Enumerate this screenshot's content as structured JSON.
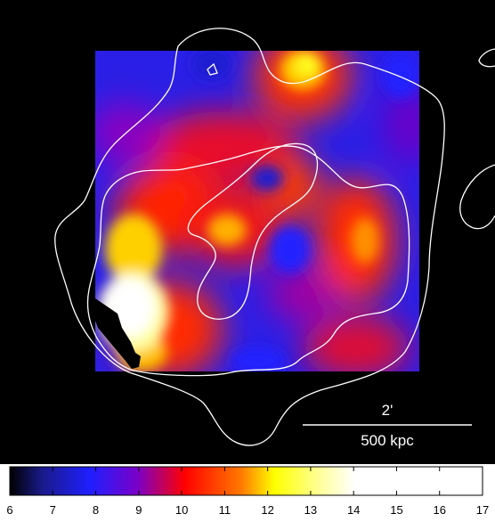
{
  "scale_bar": {
    "angular_label": "2'",
    "physical_label": "500 kpc"
  },
  "colorbar": {
    "min": 6,
    "max": 17,
    "tick_labels": [
      "6",
      "7",
      "8",
      "9",
      "10",
      "11",
      "12",
      "13",
      "14",
      "15",
      "16",
      "17"
    ],
    "colors": [
      "#000000",
      "#1a1a8c",
      "#1f1fff",
      "#7a00c8",
      "#ff0000",
      "#ff7a00",
      "#ffff00",
      "#ffffa0",
      "#ffffff"
    ]
  },
  "map": {
    "background": "#000000",
    "contour_color": "#ffffff"
  }
}
